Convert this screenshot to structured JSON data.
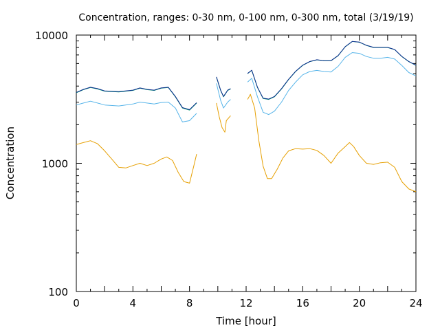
{
  "chart_data": {
    "type": "line",
    "title": "Concentration, ranges: 0-30 nm, 0-100 nm, 0-300 nm, total (3/19/19)",
    "xlabel": "Time [hour]",
    "ylabel": "Concentration",
    "xlim": [
      0,
      24
    ],
    "ylim": [
      100,
      10000
    ],
    "yscale": "log",
    "xticks": [
      "0",
      "4",
      "8",
      "12",
      "16",
      "20",
      "24"
    ],
    "yticks": [
      "100",
      "1000",
      "10000"
    ],
    "grid": false,
    "legend": "none",
    "series": [
      {
        "color": "#e69f00",
        "segments": [
          [
            [
              0,
              1400
            ],
            [
              0.5,
              1450
            ],
            [
              1,
              1500
            ],
            [
              1.5,
              1420
            ],
            [
              2,
              1250
            ],
            [
              2.5,
              1080
            ],
            [
              3,
              930
            ],
            [
              3.5,
              920
            ],
            [
              4,
              960
            ],
            [
              4.5,
              1000
            ],
            [
              5,
              960
            ],
            [
              5.5,
              1000
            ],
            [
              6,
              1080
            ],
            [
              6.4,
              1120
            ],
            [
              6.8,
              1050
            ],
            [
              7.2,
              850
            ],
            [
              7.6,
              720
            ],
            [
              8,
              700
            ],
            [
              8.3,
              950
            ],
            [
              8.5,
              1180
            ]
          ],
          [
            [
              9.9,
              2950
            ],
            [
              10.1,
              2300
            ],
            [
              10.3,
              1900
            ],
            [
              10.5,
              1750
            ],
            [
              10.6,
              2150
            ],
            [
              10.9,
              2350
            ]
          ],
          [
            [
              12.1,
              3150
            ],
            [
              12.3,
              3450
            ],
            [
              12.6,
              2700
            ],
            [
              12.9,
              1500
            ],
            [
              13.2,
              950
            ],
            [
              13.5,
              760
            ],
            [
              13.8,
              760
            ],
            [
              14.2,
              900
            ],
            [
              14.6,
              1100
            ],
            [
              15,
              1250
            ],
            [
              15.5,
              1300
            ],
            [
              16,
              1290
            ],
            [
              16.5,
              1300
            ],
            [
              17,
              1260
            ],
            [
              17.5,
              1150
            ],
            [
              18,
              1000
            ],
            [
              18.5,
              1200
            ],
            [
              19,
              1350
            ],
            [
              19.3,
              1450
            ],
            [
              19.6,
              1350
            ],
            [
              20,
              1150
            ],
            [
              20.5,
              1000
            ],
            [
              21,
              980
            ],
            [
              21.5,
              1010
            ],
            [
              22,
              1020
            ],
            [
              22.5,
              930
            ],
            [
              23,
              720
            ],
            [
              23.5,
              630
            ],
            [
              24,
              600
            ]
          ]
        ]
      },
      {
        "color": "#56b4e9",
        "segments": [
          [
            [
              0,
              2850
            ],
            [
              0.5,
              2950
            ],
            [
              1,
              3050
            ],
            [
              1.5,
              2950
            ],
            [
              2,
              2850
            ],
            [
              3,
              2800
            ],
            [
              4,
              2900
            ],
            [
              4.5,
              3000
            ],
            [
              5,
              2950
            ],
            [
              5.5,
              2900
            ],
            [
              6,
              2980
            ],
            [
              6.5,
              3000
            ],
            [
              7,
              2700
            ],
            [
              7.5,
              2100
            ],
            [
              8,
              2150
            ],
            [
              8.5,
              2450
            ]
          ],
          [
            [
              9.9,
              4200
            ],
            [
              10.2,
              3100
            ],
            [
              10.4,
              2700
            ],
            [
              10.7,
              3000
            ],
            [
              10.9,
              3150
            ]
          ],
          [
            [
              12.1,
              4300
            ],
            [
              12.4,
              4600
            ],
            [
              12.8,
              3300
            ],
            [
              13.2,
              2500
            ],
            [
              13.6,
              2400
            ],
            [
              14,
              2550
            ],
            [
              14.5,
              3000
            ],
            [
              15,
              3700
            ],
            [
              15.5,
              4300
            ],
            [
              16,
              4900
            ],
            [
              16.5,
              5200
            ],
            [
              17,
              5300
            ],
            [
              17.5,
              5200
            ],
            [
              18,
              5150
            ],
            [
              18.5,
              5700
            ],
            [
              19,
              6700
            ],
            [
              19.5,
              7300
            ],
            [
              20,
              7200
            ],
            [
              20.5,
              6800
            ],
            [
              21,
              6600
            ],
            [
              21.5,
              6600
            ],
            [
              22,
              6700
            ],
            [
              22.5,
              6500
            ],
            [
              23,
              5800
            ],
            [
              23.5,
              5100
            ],
            [
              24,
              4800
            ]
          ]
        ]
      },
      {
        "color": "#009e73",
        "segments": [
          [
            [
              0,
              3550
            ],
            [
              0.5,
              3750
            ],
            [
              1,
              3900
            ],
            [
              1.5,
              3800
            ],
            [
              2,
              3650
            ],
            [
              3,
              3600
            ],
            [
              4,
              3700
            ],
            [
              4.5,
              3850
            ],
            [
              5,
              3750
            ],
            [
              5.5,
              3700
            ],
            [
              6,
              3850
            ],
            [
              6.5,
              3900
            ],
            [
              7,
              3300
            ],
            [
              7.5,
              2700
            ],
            [
              8,
              2600
            ],
            [
              8.5,
              2950
            ]
          ],
          [
            [
              9.9,
              4700
            ],
            [
              10.2,
              3700
            ],
            [
              10.4,
              3300
            ],
            [
              10.7,
              3700
            ],
            [
              10.9,
              3800
            ]
          ],
          [
            [
              12.1,
              5000
            ],
            [
              12.4,
              5300
            ],
            [
              12.8,
              3900
            ],
            [
              13.2,
              3200
            ],
            [
              13.6,
              3150
            ],
            [
              14,
              3300
            ],
            [
              14.5,
              3800
            ],
            [
              15,
              4500
            ],
            [
              15.5,
              5200
            ],
            [
              16,
              5800
            ],
            [
              16.5,
              6200
            ],
            [
              17,
              6400
            ],
            [
              17.5,
              6300
            ],
            [
              18,
              6300
            ],
            [
              18.5,
              6900
            ],
            [
              19,
              8100
            ],
            [
              19.5,
              8900
            ],
            [
              20,
              8800
            ],
            [
              20.5,
              8300
            ],
            [
              21,
              8000
            ],
            [
              21.5,
              8000
            ],
            [
              22,
              8000
            ],
            [
              22.5,
              7700
            ],
            [
              23,
              6800
            ],
            [
              23.5,
              6200
            ],
            [
              24,
              5800
            ]
          ]
        ]
      },
      {
        "color": "#0a2a8c",
        "segments": [
          [
            [
              0,
              3570
            ],
            [
              0.5,
              3770
            ],
            [
              1,
              3920
            ],
            [
              1.5,
              3820
            ],
            [
              2,
              3670
            ],
            [
              3,
              3620
            ],
            [
              4,
              3720
            ],
            [
              4.5,
              3870
            ],
            [
              5,
              3770
            ],
            [
              5.5,
              3720
            ],
            [
              6,
              3870
            ],
            [
              6.5,
              3920
            ],
            [
              7,
              3320
            ],
            [
              7.5,
              2720
            ],
            [
              8,
              2620
            ],
            [
              8.5,
              2970
            ]
          ],
          [
            [
              9.9,
              4720
            ],
            [
              10.2,
              3720
            ],
            [
              10.4,
              3320
            ],
            [
              10.7,
              3720
            ],
            [
              10.9,
              3820
            ]
          ],
          [
            [
              12.1,
              5020
            ],
            [
              12.4,
              5320
            ],
            [
              12.8,
              3920
            ],
            [
              13.2,
              3220
            ],
            [
              13.6,
              3170
            ],
            [
              14,
              3320
            ],
            [
              14.5,
              3820
            ],
            [
              15,
              4520
            ],
            [
              15.5,
              5220
            ],
            [
              16,
              5820
            ],
            [
              16.5,
              6220
            ],
            [
              17,
              6420
            ],
            [
              17.5,
              6320
            ],
            [
              18,
              6320
            ],
            [
              18.5,
              6920
            ],
            [
              19,
              8120
            ],
            [
              19.5,
              8920
            ],
            [
              20,
              8820
            ],
            [
              20.5,
              8320
            ],
            [
              21,
              8020
            ],
            [
              21.5,
              8020
            ],
            [
              22,
              8020
            ],
            [
              22.5,
              7720
            ],
            [
              23,
              6820
            ],
            [
              23.5,
              6220
            ],
            [
              24,
              5820
            ]
          ]
        ]
      }
    ]
  }
}
